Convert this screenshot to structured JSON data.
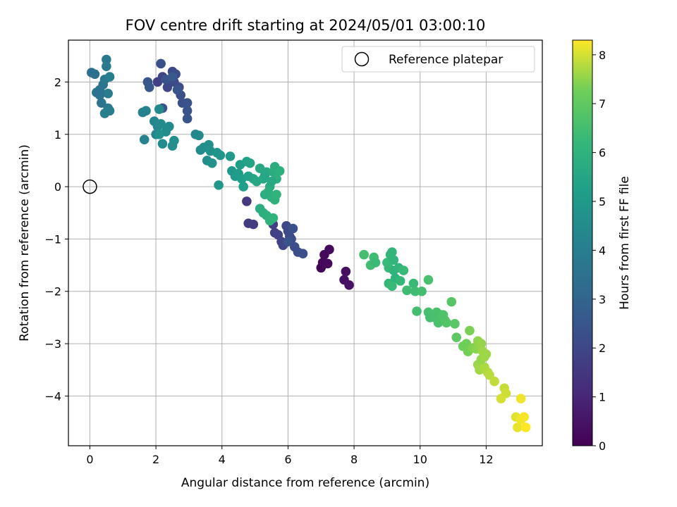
{
  "chart_data": {
    "type": "scatter",
    "title": "FOV centre drift starting at 2024/05/01 03:00:10",
    "xlabel": "Angular distance from reference (arcmin)",
    "ylabel": "Rotation from reference (arcmin)",
    "xlim": [
      -0.65,
      13.7
    ],
    "ylim": [
      -4.95,
      2.8
    ],
    "xticks": [
      0,
      2,
      4,
      6,
      8,
      10,
      12
    ],
    "xtick_labels": [
      "0",
      "2",
      "4",
      "6",
      "8",
      "10",
      "12"
    ],
    "yticks": [
      2,
      1,
      0,
      -1,
      -2,
      -3,
      -4
    ],
    "ytick_labels": [
      "2",
      "1",
      "0",
      "−1",
      "−2",
      "−3",
      "−4"
    ],
    "grid": true,
    "legend": {
      "placement": "top-right",
      "entries": [
        "Reference platepar"
      ]
    },
    "reference_point": {
      "x": 0,
      "y": 0,
      "marker": "open-circle"
    },
    "colorbar": {
      "label": "Hours from first FF file",
      "range": [
        0,
        8.3
      ],
      "ticks": [
        0,
        1,
        2,
        3,
        4,
        5,
        6,
        7,
        8
      ],
      "tick_labels": [
        "0",
        "1",
        "2",
        "3",
        "4",
        "5",
        "6",
        "7",
        "8"
      ],
      "colormap": "viridis"
    },
    "points": [
      [
        7.0,
        -1.55,
        0.1
      ],
      [
        7.05,
        -1.45,
        0.15
      ],
      [
        7.1,
        -1.3,
        0.2
      ],
      [
        7.2,
        -1.47,
        0.25
      ],
      [
        7.25,
        -1.2,
        0.3
      ],
      [
        7.75,
        -1.62,
        0.35
      ],
      [
        7.7,
        -1.78,
        0.4
      ],
      [
        7.85,
        -1.88,
        0.45
      ],
      [
        4.75,
        -0.28,
        1.6
      ],
      [
        4.8,
        -0.7,
        1.65
      ],
      [
        4.95,
        -0.72,
        1.7
      ],
      [
        5.55,
        -0.72,
        1.75
      ],
      [
        5.6,
        -0.88,
        1.8
      ],
      [
        5.7,
        -0.92,
        1.85
      ],
      [
        5.8,
        -1.05,
        1.9
      ],
      [
        5.85,
        -1.12,
        1.95
      ],
      [
        5.95,
        -0.75,
        2.0
      ],
      [
        6.0,
        -0.85,
        2.05
      ],
      [
        6.05,
        -0.95,
        2.1
      ],
      [
        6.1,
        -1.0,
        2.15
      ],
      [
        6.2,
        -1.15,
        2.2
      ],
      [
        6.3,
        -1.25,
        2.25
      ],
      [
        6.45,
        -1.28,
        2.3
      ],
      [
        6.15,
        -0.8,
        2.35
      ],
      [
        6.0,
        -1.05,
        2.4
      ],
      [
        2.05,
        2.0,
        1.8
      ],
      [
        2.2,
        2.1,
        1.9
      ],
      [
        2.35,
        1.9,
        2.0
      ],
      [
        2.5,
        2.2,
        2.05
      ],
      [
        2.55,
        2.0,
        2.1
      ],
      [
        2.6,
        2.15,
        2.15
      ],
      [
        2.7,
        1.9,
        2.2
      ],
      [
        2.75,
        1.75,
        2.25
      ],
      [
        2.8,
        1.6,
        2.3
      ],
      [
        2.95,
        1.6,
        2.35
      ],
      [
        2.95,
        1.45,
        2.4
      ],
      [
        2.95,
        1.3,
        2.45
      ],
      [
        1.75,
        2.0,
        2.5
      ],
      [
        1.8,
        1.9,
        2.55
      ],
      [
        2.15,
        2.35,
        2.3
      ],
      [
        2.2,
        1.5,
        2.4
      ],
      [
        2.3,
        2.05,
        2.4
      ],
      [
        2.65,
        1.85,
        2.5
      ],
      [
        2.5,
        2.1,
        2.6
      ],
      [
        0.05,
        2.18,
        3.4
      ],
      [
        0.15,
        2.15,
        3.45
      ],
      [
        0.2,
        1.8,
        3.5
      ],
      [
        0.3,
        1.85,
        3.55
      ],
      [
        0.35,
        1.6,
        3.6
      ],
      [
        0.4,
        1.95,
        3.65
      ],
      [
        0.45,
        2.05,
        3.7
      ],
      [
        0.5,
        2.43,
        3.75
      ],
      [
        0.5,
        2.3,
        3.8
      ],
      [
        0.55,
        1.5,
        3.85
      ],
      [
        0.55,
        1.78,
        3.9
      ],
      [
        0.6,
        2.1,
        3.95
      ],
      [
        0.6,
        1.45,
        4.0
      ],
      [
        0.45,
        1.4,
        4.05
      ],
      [
        0.3,
        1.75,
        3.5
      ],
      [
        1.6,
        1.42,
        4.1
      ],
      [
        1.65,
        0.9,
        4.15
      ],
      [
        1.7,
        1.45,
        4.2
      ],
      [
        1.95,
        1.25,
        4.25
      ],
      [
        2.0,
        1.0,
        4.3
      ],
      [
        2.05,
        1.15,
        4.35
      ],
      [
        2.1,
        1.48,
        4.4
      ],
      [
        2.15,
        1.2,
        4.45
      ],
      [
        2.2,
        0.82,
        4.5
      ],
      [
        2.3,
        1.05,
        4.55
      ],
      [
        2.4,
        1.15,
        4.5
      ],
      [
        2.5,
        0.78,
        4.6
      ],
      [
        2.55,
        0.88,
        4.65
      ],
      [
        2.1,
        1.0,
        4.7
      ],
      [
        3.2,
        1.0,
        4.3
      ],
      [
        3.3,
        0.98,
        4.4
      ],
      [
        3.35,
        0.7,
        4.5
      ],
      [
        3.45,
        0.75,
        4.55
      ],
      [
        3.55,
        0.5,
        4.6
      ],
      [
        3.6,
        0.8,
        4.65
      ],
      [
        3.65,
        0.68,
        4.7
      ],
      [
        3.7,
        0.45,
        4.75
      ],
      [
        3.85,
        0.65,
        4.8
      ],
      [
        3.95,
        0.6,
        4.85
      ],
      [
        3.9,
        0.03,
        4.9
      ],
      [
        4.25,
        0.58,
        4.95
      ],
      [
        4.3,
        0.3,
        5.0
      ],
      [
        4.4,
        0.2,
        5.05
      ],
      [
        4.5,
        0.25,
        5.1
      ],
      [
        4.55,
        0.42,
        5.15
      ],
      [
        4.6,
        0.15,
        5.2
      ],
      [
        4.65,
        0.0,
        5.25
      ],
      [
        4.75,
        0.48,
        5.3
      ],
      [
        4.8,
        0.2,
        5.35
      ],
      [
        4.85,
        0.45,
        5.4
      ],
      [
        4.95,
        0.15,
        5.45
      ],
      [
        5.05,
        0.1,
        5.5
      ],
      [
        5.15,
        0.35,
        5.55
      ],
      [
        5.25,
        0.15,
        5.6
      ],
      [
        5.35,
        0.28,
        5.65
      ],
      [
        5.45,
        0.0,
        5.7
      ],
      [
        5.55,
        0.28,
        5.75
      ],
      [
        5.6,
        0.38,
        5.8
      ],
      [
        5.65,
        0.15,
        5.85
      ],
      [
        5.75,
        0.3,
        5.9
      ],
      [
        5.5,
        0.1,
        5.6
      ],
      [
        5.3,
        0.22,
        5.5
      ],
      [
        5.15,
        -0.42,
        5.8
      ],
      [
        5.25,
        -0.5,
        5.85
      ],
      [
        5.35,
        -0.55,
        5.9
      ],
      [
        5.45,
        -0.65,
        5.95
      ],
      [
        5.55,
        -0.6,
        6.0
      ],
      [
        5.3,
        -0.15,
        5.8
      ],
      [
        5.4,
        -0.1,
        5.85
      ],
      [
        5.5,
        -0.2,
        5.9
      ],
      [
        5.6,
        -0.25,
        5.95
      ],
      [
        5.65,
        -0.15,
        6.0
      ],
      [
        8.3,
        -1.3,
        6.5
      ],
      [
        8.5,
        -1.5,
        6.45
      ],
      [
        8.6,
        -1.35,
        6.4
      ],
      [
        8.65,
        -1.45,
        6.35
      ],
      [
        9.0,
        -1.45,
        6.3
      ],
      [
        9.05,
        -1.55,
        6.25
      ],
      [
        9.1,
        -1.3,
        6.2
      ],
      [
        9.15,
        -1.25,
        6.15
      ],
      [
        9.2,
        -1.4,
        6.1
      ],
      [
        9.2,
        -1.6,
        6.05
      ],
      [
        9.25,
        -1.75,
        6.0
      ],
      [
        9.35,
        -1.55,
        6.1
      ],
      [
        9.4,
        -1.8,
        6.2
      ],
      [
        9.5,
        -1.6,
        6.3
      ],
      [
        9.6,
        -1.98,
        6.4
      ],
      [
        9.05,
        -1.85,
        6.2
      ],
      [
        9.15,
        -1.9,
        6.3
      ],
      [
        9.8,
        -1.85,
        6.3
      ],
      [
        9.85,
        -2.0,
        6.4
      ],
      [
        10.05,
        -2.0,
        6.5
      ],
      [
        9.9,
        -2.38,
        6.5
      ],
      [
        10.25,
        -1.78,
        6.6
      ],
      [
        10.25,
        -2.4,
        6.6
      ],
      [
        10.3,
        -2.5,
        6.55
      ],
      [
        10.45,
        -2.5,
        6.6
      ],
      [
        10.55,
        -2.6,
        6.65
      ],
      [
        10.65,
        -2.45,
        6.7
      ],
      [
        10.75,
        -2.55,
        6.75
      ],
      [
        10.8,
        -2.6,
        6.8
      ],
      [
        10.95,
        -2.2,
        6.85
      ],
      [
        11.05,
        -2.62,
        6.9
      ],
      [
        11.1,
        -2.88,
        6.95
      ],
      [
        10.5,
        -2.4,
        6.6
      ],
      [
        10.7,
        -2.45,
        6.7
      ],
      [
        11.3,
        -3.05,
        7.2
      ],
      [
        11.4,
        -3.0,
        7.25
      ],
      [
        11.45,
        -3.15,
        7.3
      ],
      [
        11.5,
        -2.75,
        7.35
      ],
      [
        11.6,
        -3.08,
        7.4
      ],
      [
        11.7,
        -3.1,
        7.45
      ],
      [
        11.8,
        -3.05,
        7.5
      ],
      [
        11.75,
        -2.95,
        7.5
      ],
      [
        11.85,
        -3.0,
        7.55
      ],
      [
        11.9,
        -3.15,
        7.6
      ],
      [
        11.75,
        -3.4,
        7.6
      ],
      [
        11.8,
        -3.5,
        7.65
      ],
      [
        11.95,
        -3.45,
        7.7
      ],
      [
        12.05,
        -3.55,
        7.75
      ],
      [
        12.1,
        -3.6,
        7.8
      ],
      [
        12.25,
        -3.72,
        7.85
      ],
      [
        12.55,
        -3.85,
        7.9
      ],
      [
        12.6,
        -3.95,
        7.95
      ],
      [
        12.45,
        -4.05,
        8.0
      ],
      [
        12.0,
        -3.2,
        7.6
      ],
      [
        11.85,
        -3.3,
        7.55
      ],
      [
        11.95,
        -3.25,
        7.6
      ],
      [
        12.9,
        -4.4,
        8.1
      ],
      [
        12.95,
        -4.6,
        8.15
      ],
      [
        13.05,
        -4.45,
        8.2
      ],
      [
        13.15,
        -4.4,
        8.25
      ],
      [
        13.2,
        -4.6,
        8.3
      ],
      [
        13.05,
        -4.05,
        8.2
      ]
    ]
  }
}
